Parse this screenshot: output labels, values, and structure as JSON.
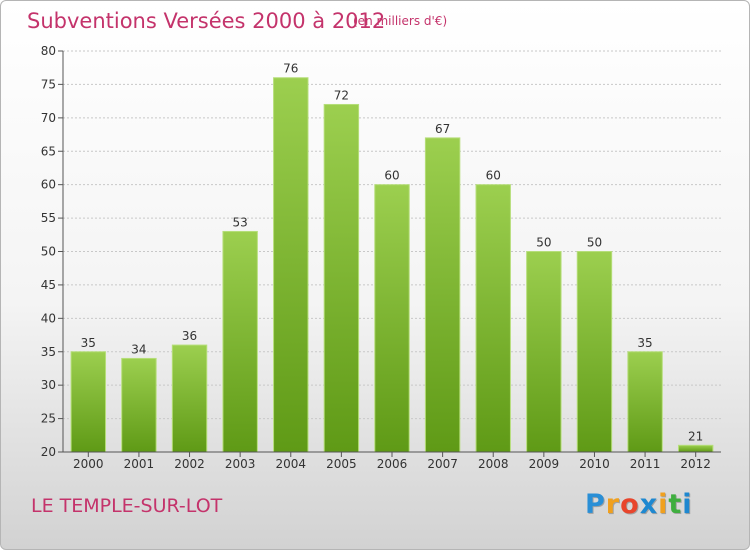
{
  "chart_data": {
    "type": "bar",
    "title": "Subventions Versées 2000 à 2012",
    "subtitle": "(en milliers d'€)",
    "categories": [
      "2000",
      "2001",
      "2002",
      "2003",
      "2004",
      "2005",
      "2006",
      "2007",
      "2008",
      "2009",
      "2010",
      "2011",
      "2012"
    ],
    "values": [
      35,
      34,
      36,
      53,
      76,
      72,
      60,
      67,
      60,
      50,
      50,
      35,
      21
    ],
    "ylim": [
      20,
      80
    ],
    "yticks": [
      20,
      25,
      30,
      35,
      40,
      45,
      50,
      55,
      60,
      65,
      70,
      75,
      80
    ],
    "grid": true,
    "bar_color": "#7ab72c",
    "footer_label": "LE TEMPLE-SUR-LOT"
  },
  "brand": {
    "logo_letters": [
      "P",
      "r",
      "o",
      "x",
      "i",
      "t",
      "i"
    ],
    "logo_colors": [
      "#2a8fd6",
      "#f0a01e",
      "#e8452c",
      "#1e88d0",
      "#f0a01e",
      "#3fae3f",
      "#1e88d0"
    ]
  },
  "colors": {
    "accent": "#c4336b",
    "grid": "#c8c8c8",
    "axis": "#555555"
  }
}
